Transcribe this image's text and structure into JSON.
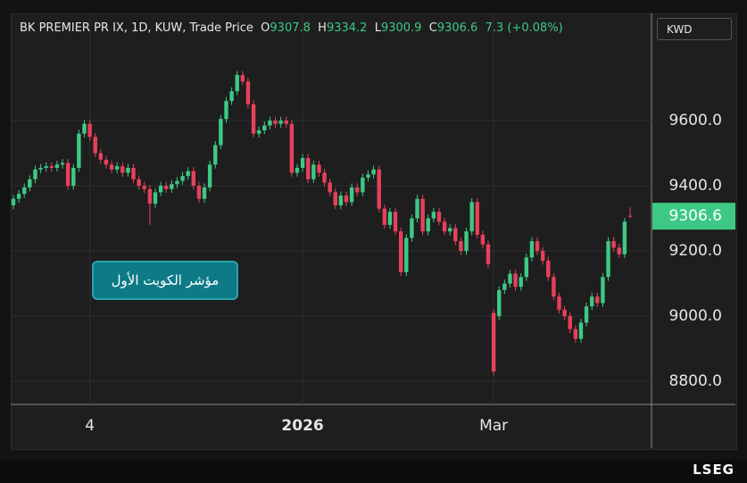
{
  "chart_data": {
    "type": "candlestick",
    "title": "BK PREMIER PR IX, 1D, KUW, Trade Price",
    "ohlc_labels": [
      "O",
      "H",
      "L",
      "C"
    ],
    "change_label": "7.3 (+0.08%)",
    "currency": "KWD",
    "annotation": "مؤشر الكويت الأول",
    "brand": "LSEG",
    "up_color": "#3dc985",
    "down_color": "#e8405c",
    "grid": true,
    "ylim": [
      8729,
      9929
    ],
    "yticks": [
      {
        "value": 8800,
        "label": "8800.0"
      },
      {
        "value": 9000,
        "label": "9000.0"
      },
      {
        "value": 9200,
        "label": "9200.0"
      },
      {
        "value": 9400,
        "label": "9400.0"
      },
      {
        "value": 9600,
        "label": "9600.0"
      }
    ],
    "categories": [
      null,
      null,
      null,
      null,
      null,
      null,
      null,
      null,
      null,
      null,
      null,
      null,
      null,
      null,
      "4",
      null,
      null,
      null,
      null,
      null,
      null,
      null,
      null,
      null,
      null,
      null,
      null,
      null,
      null,
      null,
      null,
      null,
      null,
      null,
      null,
      null,
      null,
      null,
      null,
      null,
      null,
      null,
      null,
      null,
      null,
      null,
      null,
      null,
      null,
      null,
      null,
      null,
      null,
      "2026",
      null,
      null,
      null,
      null,
      null,
      null,
      null,
      null,
      null,
      null,
      null,
      null,
      null,
      null,
      null,
      null,
      null,
      null,
      null,
      null,
      null,
      null,
      null,
      null,
      null,
      null,
      null,
      null,
      null,
      null,
      null,
      null,
      null,
      null,
      "Mar",
      null,
      null,
      null,
      null,
      null,
      null,
      null,
      null,
      null,
      null,
      null,
      null,
      null,
      null,
      null,
      null,
      null,
      null,
      null,
      null,
      null,
      null,
      null,
      null,
      null
    ],
    "open": [
      9340,
      9360,
      9375,
      9395,
      9420,
      9450,
      9455,
      9460,
      9455,
      9465,
      9470,
      9400,
      9455,
      9560,
      9590,
      9550,
      9500,
      9480,
      9465,
      9450,
      9460,
      9440,
      9455,
      9420,
      9400,
      9390,
      9345,
      9380,
      9400,
      9390,
      9405,
      9415,
      9430,
      9445,
      9400,
      9360,
      9395,
      9465,
      9525,
      9605,
      9660,
      9690,
      9740,
      9720,
      9650,
      9560,
      9570,
      9585,
      9600,
      9590,
      9600,
      9590,
      9440,
      9455,
      9485,
      9420,
      9465,
      9440,
      9410,
      9380,
      9340,
      9370,
      9350,
      9395,
      9380,
      9425,
      9435,
      9450,
      9330,
      9280,
      9320,
      9260,
      9135,
      9240,
      9300,
      9360,
      9260,
      9300,
      9320,
      9290,
      9260,
      9270,
      9230,
      9200,
      9260,
      9350,
      9250,
      9220,
      9010,
      9000,
      9080,
      9100,
      9130,
      9090,
      9120,
      9180,
      9230,
      9200,
      9170,
      9120,
      9060,
      9020,
      9000,
      8960,
      8930,
      8980,
      9030,
      9060,
      9040,
      9120,
      9230,
      9210,
      9190,
      9307.8
    ],
    "high": [
      9372,
      9387,
      9407,
      9432,
      9462,
      9467,
      9472,
      9472,
      9477,
      9482,
      9482,
      9467,
      9572,
      9602,
      9602,
      9562,
      9512,
      9492,
      9477,
      9472,
      9472,
      9467,
      9467,
      9432,
      9412,
      9402,
      9392,
      9412,
      9412,
      9417,
      9427,
      9442,
      9457,
      9457,
      9412,
      9407,
      9477,
      9537,
      9617,
      9672,
      9702,
      9752,
      9752,
      9732,
      9662,
      9582,
      9597,
      9612,
      9612,
      9612,
      9612,
      9602,
      9467,
      9497,
      9497,
      9477,
      9477,
      9452,
      9422,
      9392,
      9382,
      9382,
      9407,
      9407,
      9437,
      9447,
      9462,
      9462,
      9342,
      9332,
      9332,
      9272,
      9252,
      9312,
      9372,
      9372,
      9312,
      9332,
      9332,
      9302,
      9282,
      9282,
      9242,
      9272,
      9362,
      9362,
      9262,
      9232,
      9022,
      9092,
      9112,
      9142,
      9142,
      9132,
      9192,
      9242,
      9242,
      9212,
      9182,
      9132,
      9072,
      9032,
      9012,
      8972,
      8992,
      9042,
      9072,
      9072,
      9132,
      9242,
      9242,
      9222,
      9302,
      9334.2
    ],
    "low": [
      9328,
      9348,
      9363,
      9383,
      9408,
      9438,
      9443,
      9443,
      9443,
      9453,
      9388,
      9388,
      9443,
      9548,
      9538,
      9488,
      9468,
      9453,
      9438,
      9438,
      9428,
      9428,
      9408,
      9388,
      9378,
      9280,
      9333,
      9368,
      9378,
      9378,
      9393,
      9403,
      9418,
      9388,
      9348,
      9348,
      9383,
      9453,
      9513,
      9593,
      9648,
      9678,
      9708,
      9638,
      9548,
      9548,
      9558,
      9573,
      9578,
      9578,
      9578,
      9428,
      9428,
      9443,
      9408,
      9408,
      9428,
      9398,
      9368,
      9328,
      9328,
      9338,
      9338,
      9368,
      9368,
      9413,
      9423,
      9318,
      9268,
      9268,
      9248,
      9123,
      9123,
      9228,
      9288,
      9248,
      9248,
      9288,
      9278,
      9248,
      9248,
      9218,
      9188,
      9188,
      9248,
      9238,
      9208,
      9148,
      8818,
      8988,
      9068,
      9088,
      9078,
      9078,
      9108,
      9168,
      9188,
      9158,
      9108,
      9048,
      9008,
      8988,
      8948,
      8918,
      8918,
      8968,
      9018,
      9028,
      9028,
      9108,
      9198,
      9178,
      9178,
      9300.9
    ],
    "close": [
      9360,
      9375,
      9395,
      9420,
      9450,
      9455,
      9460,
      9455,
      9465,
      9470,
      9400,
      9455,
      9560,
      9590,
      9550,
      9500,
      9480,
      9465,
      9450,
      9460,
      9440,
      9455,
      9420,
      9400,
      9390,
      9345,
      9380,
      9400,
      9390,
      9405,
      9415,
      9430,
      9445,
      9400,
      9360,
      9395,
      9465,
      9525,
      9605,
      9660,
      9690,
      9740,
      9720,
      9650,
      9560,
      9570,
      9585,
      9600,
      9590,
      9600,
      9590,
      9440,
      9455,
      9485,
      9420,
      9465,
      9440,
      9410,
      9380,
      9340,
      9370,
      9350,
      9395,
      9380,
      9425,
      9435,
      9450,
      9330,
      9280,
      9320,
      9260,
      9135,
      9240,
      9300,
      9360,
      9260,
      9300,
      9320,
      9290,
      9260,
      9270,
      9230,
      9200,
      9260,
      9350,
      9250,
      9220,
      9160,
      8830,
      9080,
      9100,
      9130,
      9090,
      9120,
      9180,
      9230,
      9200,
      9170,
      9120,
      9060,
      9020,
      9000,
      8960,
      8930,
      8980,
      9030,
      9060,
      9040,
      9120,
      9230,
      9210,
      9190,
      9290,
      9306.6
    ]
  }
}
